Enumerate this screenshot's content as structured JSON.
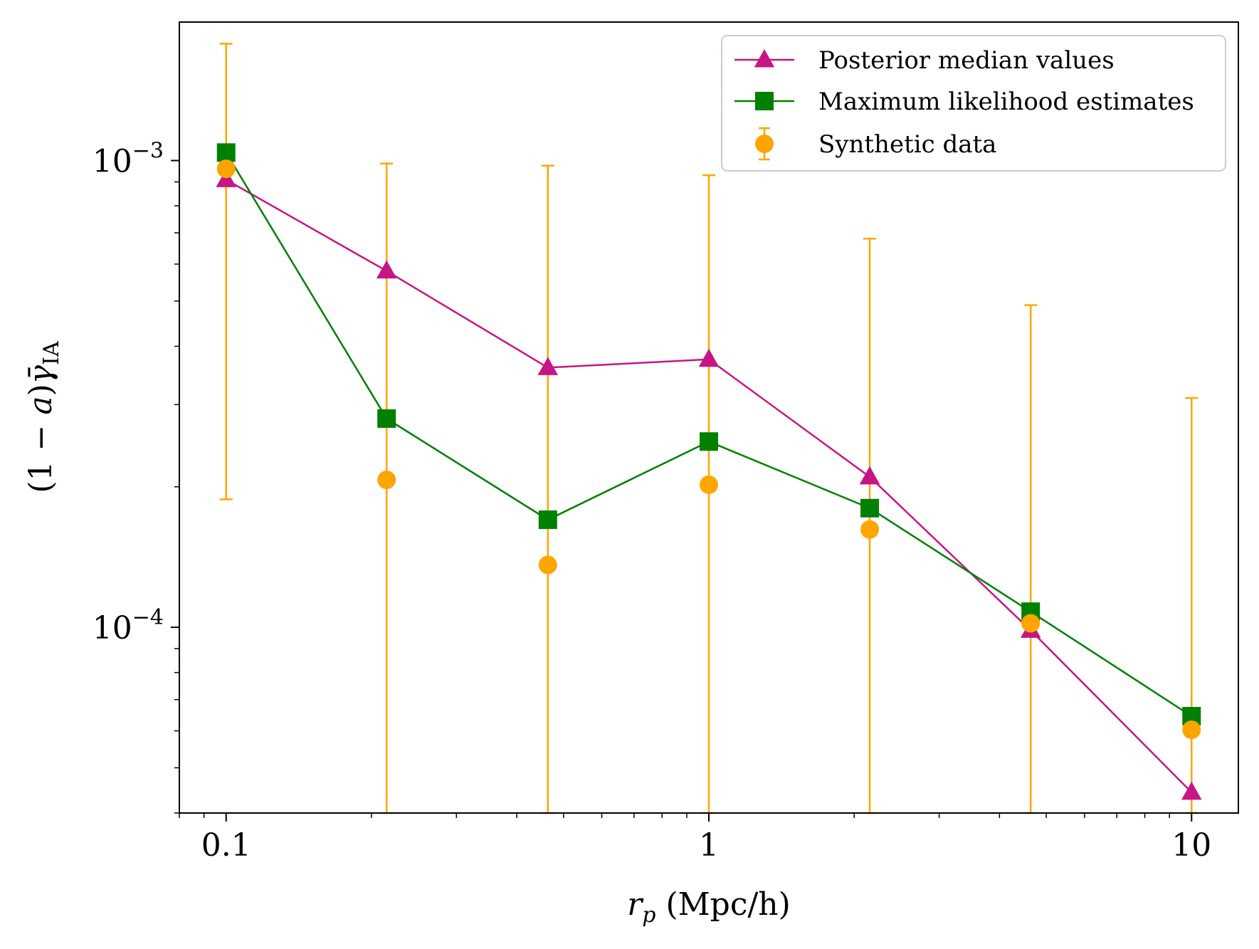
{
  "chart_data": {
    "type": "line",
    "title": "",
    "xlabel": "r_p (Mpc/h)",
    "ylabel": "(1 − a)γ̄_IA",
    "xscale": "log",
    "yscale": "log",
    "xlim": [
      0.08,
      12.5
    ],
    "ylim": [
      4e-05,
      0.00198
    ],
    "x_ticks": [
      {
        "value": 0.1,
        "label": "0.1"
      },
      {
        "value": 1,
        "label": "1"
      },
      {
        "value": 10,
        "label": "10"
      }
    ],
    "y_ticks": [
      {
        "value": 0.001,
        "base": "10",
        "exp": "−3"
      },
      {
        "value": 0.0001,
        "base": "10",
        "exp": "−4"
      }
    ],
    "x": [
      0.1,
      0.215,
      0.464,
      1.0,
      2.154,
      4.642,
      10.0
    ],
    "series": [
      {
        "name": "Posterior median values",
        "color": "#c71585",
        "marker": "triangle",
        "values": [
          0.00091,
          0.00058,
          0.00036,
          0.000375,
          0.00021,
          9.85e-05,
          4.43e-05
        ]
      },
      {
        "name": "Maximum likelihood estimates",
        "color": "#008000",
        "marker": "square",
        "values": [
          0.00104,
          0.00028,
          0.00017,
          0.00025,
          0.00018,
          0.000108,
          6.45e-05
        ]
      },
      {
        "name": "Synthetic data",
        "color": "#ffa500",
        "marker": "circle",
        "errorbars": true,
        "values": [
          0.00096,
          0.000207,
          0.000136,
          0.000202,
          0.000162,
          0.000102,
          6.03e-05
        ],
        "yerr_upper": [
          0.00178,
          0.000985,
          0.000975,
          0.00093,
          0.00068,
          0.00049,
          0.00031
        ],
        "yerr_lower": [
          0.000188,
          4e-05,
          4e-05,
          4e-05,
          4e-05,
          4e-05,
          4e-05
        ]
      }
    ],
    "grid": false,
    "legend_position": "top-right"
  }
}
